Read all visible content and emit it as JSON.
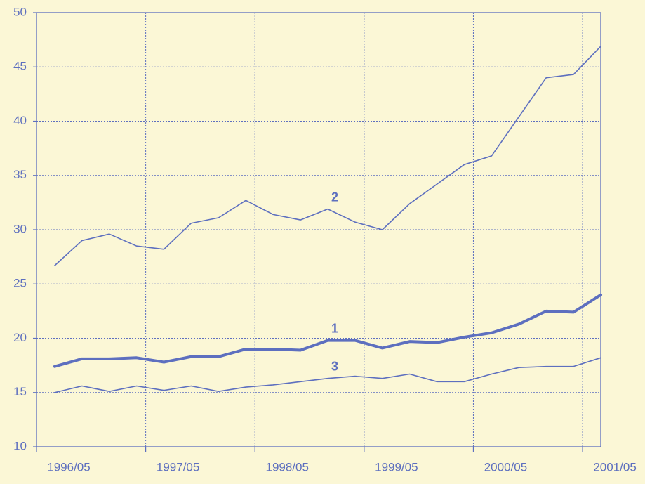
{
  "chart_data": {
    "type": "line",
    "x": [
      "1996/07",
      "1996/10",
      "1997/01",
      "1997/04",
      "1997/07",
      "1997/10",
      "1998/01",
      "1998/04",
      "1998/07",
      "1998/10",
      "1999/01",
      "1999/04",
      "1999/07",
      "1999/10",
      "2000/01",
      "2000/04",
      "2000/07",
      "2000/10",
      "2001/01",
      "2001/04",
      "2001/07"
    ],
    "xlim": [
      "1996/05",
      "2001/07"
    ],
    "xticks": [
      "1996/05",
      "1997/05",
      "1998/05",
      "1999/05",
      "2000/05",
      "2001/05"
    ],
    "ylim": [
      10,
      50
    ],
    "yticks": [
      10,
      15,
      20,
      25,
      30,
      35,
      40,
      45,
      50
    ],
    "grid": true,
    "series": [
      {
        "name": "1",
        "color": "#5d6fbf",
        "line_width": 4,
        "values": [
          17.4,
          18.1,
          18.1,
          18.2,
          17.8,
          18.3,
          18.3,
          19.0,
          19.0,
          18.9,
          19.8,
          19.8,
          19.1,
          19.7,
          19.6,
          20.1,
          20.5,
          21.3,
          22.5,
          22.4,
          24.0
        ]
      },
      {
        "name": "2",
        "color": "#5d6fbf",
        "line_width": 1.6,
        "values": [
          26.7,
          29.0,
          29.6,
          28.5,
          28.2,
          30.6,
          31.1,
          32.7,
          31.4,
          30.9,
          31.9,
          30.7,
          30.0,
          32.4,
          34.2,
          36.0,
          36.8,
          40.4,
          44.0,
          44.3,
          46.9
        ]
      },
      {
        "name": "3",
        "color": "#5d6fbf",
        "line_width": 1.6,
        "values": [
          15.0,
          15.6,
          15.1,
          15.6,
          15.2,
          15.6,
          15.1,
          15.5,
          15.7,
          16.0,
          16.3,
          16.5,
          16.3,
          16.7,
          16.0,
          16.0,
          16.7,
          17.3,
          17.4,
          17.4,
          18.2
        ]
      }
    ]
  }
}
